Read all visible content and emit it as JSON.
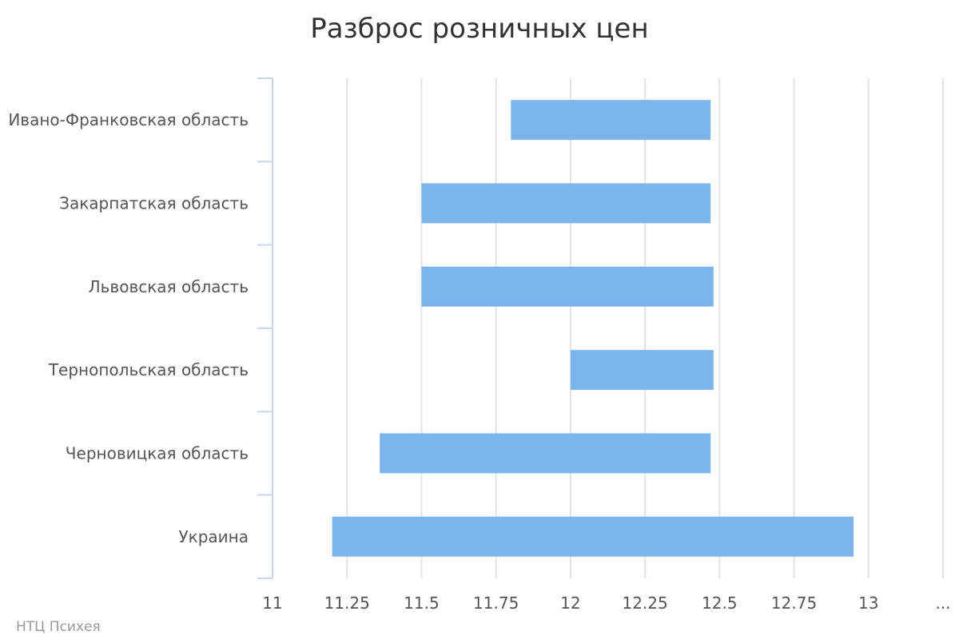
{
  "chart_data": {
    "type": "bar",
    "orientation": "horizontal",
    "title": "Разброс розничных цен",
    "categories": [
      "Ивано-Франковская область",
      "Закарпатская область",
      "Львовская область",
      "Тернопольская область",
      "Черновицкая область",
      "Украина"
    ],
    "ranges": [
      [
        11.8,
        12.47
      ],
      [
        11.5,
        12.47
      ],
      [
        11.5,
        12.48
      ],
      [
        12.0,
        12.48
      ],
      [
        11.36,
        12.47
      ],
      [
        11.2,
        12.95
      ]
    ],
    "xlim": [
      11,
      13.25
    ],
    "x_ticks": [
      "11",
      "11.25",
      "11.5",
      "11.75",
      "12",
      "12.25",
      "12.5",
      "12.75",
      "13",
      "..."
    ],
    "grid": true,
    "colors": {
      "bar": "#7cb5ec"
    }
  },
  "credits": "НТЦ Психея"
}
